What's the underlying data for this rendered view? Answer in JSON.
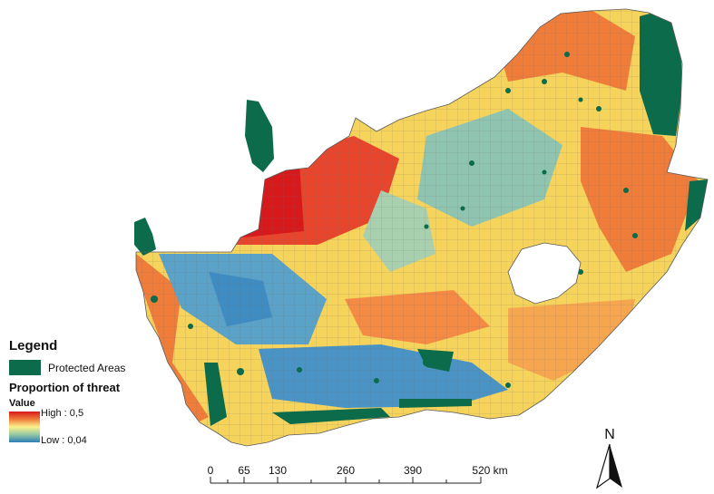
{
  "legend": {
    "title": "Legend",
    "protected_areas_label": "Protected Areas",
    "threat_title": "Proportion of threat",
    "value_label": "Value",
    "high_label": "High : 0,5",
    "low_label": "Low : 0,04"
  },
  "scale_bar": {
    "ticks": [
      "0",
      "65",
      "130",
      "260",
      "390",
      "520 km"
    ]
  },
  "north_arrow": {
    "label": "N"
  },
  "colors": {
    "protected_area": "#0b6b4a",
    "high": "#d7191c",
    "mid": "#fbf28a",
    "low": "#2c7fb8"
  }
}
